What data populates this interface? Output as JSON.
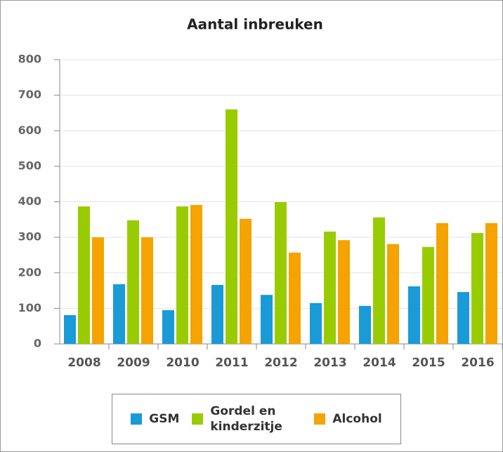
{
  "chart_data": {
    "type": "bar",
    "title": "Aantal inbreuken",
    "categories": [
      "2008",
      "2009",
      "2010",
      "2011",
      "2012",
      "2013",
      "2014",
      "2015",
      "2016"
    ],
    "series": [
      {
        "name": "GSM",
        "color": "#1a9ad6",
        "values": [
          81,
          168,
          95,
          166,
          138,
          115,
          107,
          162,
          146
        ]
      },
      {
        "name": "Gordel en kinderzitje",
        "color": "#99cc00",
        "values": [
          387,
          348,
          387,
          660,
          399,
          316,
          356,
          273,
          312
        ]
      },
      {
        "name": "Alcohol",
        "color": "#f4a300",
        "values": [
          300,
          300,
          391,
          352,
          257,
          292,
          281,
          340,
          340
        ]
      }
    ],
    "ylim": [
      0,
      800
    ],
    "yticks": [
      0,
      100,
      200,
      300,
      400,
      500,
      600,
      700,
      800
    ],
    "grid": true,
    "legend": "bottom"
  }
}
